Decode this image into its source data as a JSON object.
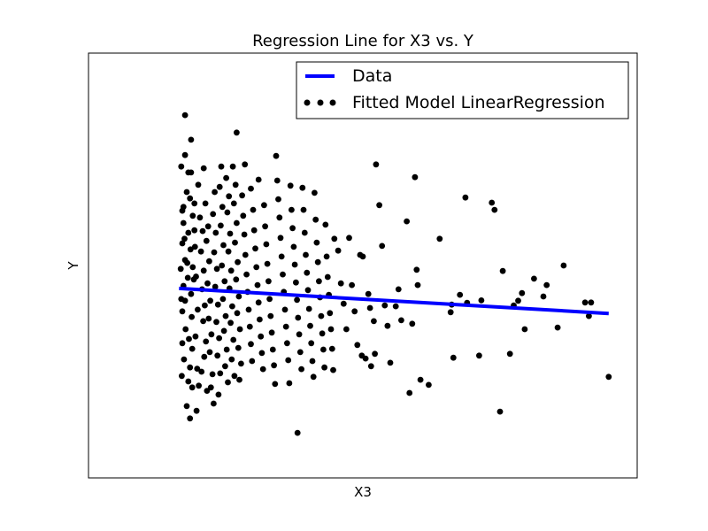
{
  "chart_data": {
    "type": "scatter",
    "title": "Regression Line for X3 vs. Y",
    "xlabel": "X3",
    "ylabel": "Y",
    "xlim": [
      0,
      1
    ],
    "ylim": [
      0,
      1
    ],
    "grid": false,
    "ticks_visible": false,
    "legend": {
      "placement": "top-right",
      "entries": [
        {
          "label": "Data",
          "marker": "line",
          "color": "#0000ff"
        },
        {
          "label": "Fitted Model LinearRegression",
          "marker": "dots",
          "color": "#000000"
        }
      ]
    },
    "line_series": {
      "name": "Data",
      "color": "#0000ff",
      "x": [
        0.165,
        0.948
      ],
      "y": [
        0.446,
        0.387
      ]
    },
    "scatter_series": {
      "name": "Fitted Model LinearRegression",
      "color": "#000000",
      "points": [
        [
          0.176,
          0.854
        ],
        [
          0.187,
          0.796
        ],
        [
          0.176,
          0.76
        ],
        [
          0.182,
          0.719
        ],
        [
          0.187,
          0.719
        ],
        [
          0.169,
          0.733
        ],
        [
          0.185,
          0.658
        ],
        [
          0.179,
          0.673
        ],
        [
          0.173,
          0.638
        ],
        [
          0.19,
          0.617
        ],
        [
          0.173,
          0.6
        ],
        [
          0.182,
          0.577
        ],
        [
          0.171,
          0.552
        ],
        [
          0.186,
          0.538
        ],
        [
          0.176,
          0.513
        ],
        [
          0.19,
          0.496
        ],
        [
          0.168,
          0.492
        ],
        [
          0.181,
          0.471
        ],
        [
          0.173,
          0.452
        ],
        [
          0.187,
          0.433
        ],
        [
          0.176,
          0.417
        ],
        [
          0.171,
          0.392
        ],
        [
          0.188,
          0.379
        ],
        [
          0.177,
          0.35
        ],
        [
          0.183,
          0.327
        ],
        [
          0.171,
          0.317
        ],
        [
          0.189,
          0.304
        ],
        [
          0.174,
          0.279
        ],
        [
          0.185,
          0.26
        ],
        [
          0.17,
          0.24
        ],
        [
          0.182,
          0.227
        ],
        [
          0.189,
          0.213
        ],
        [
          0.179,
          0.169
        ],
        [
          0.185,
          0.14
        ],
        [
          0.169,
          0.421
        ],
        [
          0.192,
          0.467
        ],
        [
          0.18,
          0.506
        ],
        [
          0.175,
          0.563
        ],
        [
          0.193,
          0.583
        ],
        [
          0.171,
          0.629
        ],
        [
          0.194,
          0.544
        ],
        [
          0.196,
          0.474
        ],
        [
          0.199,
          0.396
        ],
        [
          0.195,
          0.333
        ],
        [
          0.198,
          0.257
        ],
        [
          0.201,
          0.217
        ],
        [
          0.197,
          0.158
        ],
        [
          0.193,
          0.646
        ],
        [
          0.2,
          0.69
        ],
        [
          0.203,
          0.613
        ],
        [
          0.208,
          0.581
        ],
        [
          0.205,
          0.533
        ],
        [
          0.21,
          0.488
        ],
        [
          0.207,
          0.444
        ],
        [
          0.212,
          0.406
        ],
        [
          0.209,
          0.369
        ],
        [
          0.214,
          0.321
        ],
        [
          0.211,
          0.285
        ],
        [
          0.206,
          0.25
        ],
        [
          0.216,
          0.205
        ],
        [
          0.213,
          0.646
        ],
        [
          0.218,
          0.592
        ],
        [
          0.215,
          0.558
        ],
        [
          0.22,
          0.51
        ],
        [
          0.217,
          0.458
        ],
        [
          0.222,
          0.417
        ],
        [
          0.219,
          0.375
        ],
        [
          0.224,
          0.338
        ],
        [
          0.221,
          0.296
        ],
        [
          0.226,
          0.244
        ],
        [
          0.223,
          0.213
        ],
        [
          0.228,
          0.175
        ],
        [
          0.21,
          0.729
        ],
        [
          0.23,
          0.673
        ],
        [
          0.227,
          0.621
        ],
        [
          0.232,
          0.577
        ],
        [
          0.229,
          0.531
        ],
        [
          0.234,
          0.492
        ],
        [
          0.231,
          0.45
        ],
        [
          0.236,
          0.408
        ],
        [
          0.233,
          0.367
        ],
        [
          0.238,
          0.329
        ],
        [
          0.235,
          0.288
        ],
        [
          0.24,
          0.246
        ],
        [
          0.237,
          0.196
        ],
        [
          0.242,
          0.733
        ],
        [
          0.239,
          0.685
        ],
        [
          0.244,
          0.638
        ],
        [
          0.241,
          0.594
        ],
        [
          0.246,
          0.548
        ],
        [
          0.243,
          0.5
        ],
        [
          0.248,
          0.463
        ],
        [
          0.245,
          0.421
        ],
        [
          0.25,
          0.381
        ],
        [
          0.247,
          0.346
        ],
        [
          0.252,
          0.302
        ],
        [
          0.249,
          0.263
        ],
        [
          0.254,
          0.225
        ],
        [
          0.251,
          0.706
        ],
        [
          0.256,
          0.663
        ],
        [
          0.253,
          0.625
        ],
        [
          0.258,
          0.575
        ],
        [
          0.255,
          0.533
        ],
        [
          0.26,
          0.488
        ],
        [
          0.257,
          0.446
        ],
        [
          0.262,
          0.404
        ],
        [
          0.259,
          0.365
        ],
        [
          0.264,
          0.325
        ],
        [
          0.261,
          0.279
        ],
        [
          0.266,
          0.24
        ],
        [
          0.263,
          0.733
        ],
        [
          0.268,
          0.69
        ],
        [
          0.265,
          0.646
        ],
        [
          0.27,
          0.6
        ],
        [
          0.267,
          0.554
        ],
        [
          0.272,
          0.508
        ],
        [
          0.269,
          0.467
        ],
        [
          0.274,
          0.427
        ],
        [
          0.271,
          0.388
        ],
        [
          0.276,
          0.35
        ],
        [
          0.273,
          0.306
        ],
        [
          0.278,
          0.269
        ],
        [
          0.275,
          0.231
        ],
        [
          0.27,
          0.813
        ],
        [
          0.28,
          0.665
        ],
        [
          0.282,
          0.617
        ],
        [
          0.284,
          0.573
        ],
        [
          0.286,
          0.525
        ],
        [
          0.288,
          0.479
        ],
        [
          0.29,
          0.438
        ],
        [
          0.292,
          0.396
        ],
        [
          0.294,
          0.356
        ],
        [
          0.296,
          0.315
        ],
        [
          0.298,
          0.275
        ],
        [
          0.285,
          0.738
        ],
        [
          0.296,
          0.681
        ],
        [
          0.3,
          0.631
        ],
        [
          0.302,
          0.583
        ],
        [
          0.304,
          0.54
        ],
        [
          0.306,
          0.496
        ],
        [
          0.308,
          0.454
        ],
        [
          0.31,
          0.413
        ],
        [
          0.312,
          0.373
        ],
        [
          0.314,
          0.333
        ],
        [
          0.316,
          0.294
        ],
        [
          0.318,
          0.256
        ],
        [
          0.31,
          0.702
        ],
        [
          0.32,
          0.642
        ],
        [
          0.322,
          0.592
        ],
        [
          0.324,
          0.55
        ],
        [
          0.326,
          0.504
        ],
        [
          0.328,
          0.463
        ],
        [
          0.33,
          0.421
        ],
        [
          0.332,
          0.381
        ],
        [
          0.334,
          0.342
        ],
        [
          0.336,
          0.302
        ],
        [
          0.338,
          0.265
        ],
        [
          0.34,
          0.221
        ],
        [
          0.342,
          0.758
        ],
        [
          0.344,
          0.7
        ],
        [
          0.346,
          0.656
        ],
        [
          0.348,
          0.613
        ],
        [
          0.35,
          0.565
        ],
        [
          0.352,
          0.521
        ],
        [
          0.354,
          0.479
        ],
        [
          0.356,
          0.438
        ],
        [
          0.358,
          0.396
        ],
        [
          0.36,
          0.356
        ],
        [
          0.362,
          0.317
        ],
        [
          0.364,
          0.277
        ],
        [
          0.366,
          0.223
        ],
        [
          0.368,
          0.688
        ],
        [
          0.37,
          0.631
        ],
        [
          0.372,
          0.588
        ],
        [
          0.374,
          0.544
        ],
        [
          0.376,
          0.502
        ],
        [
          0.378,
          0.46
        ],
        [
          0.38,
          0.419
        ],
        [
          0.382,
          0.377
        ],
        [
          0.384,
          0.338
        ],
        [
          0.386,
          0.296
        ],
        [
          0.388,
          0.256
        ],
        [
          0.381,
          0.106
        ],
        [
          0.39,
          0.683
        ],
        [
          0.392,
          0.631
        ],
        [
          0.394,
          0.577
        ],
        [
          0.396,
          0.525
        ],
        [
          0.398,
          0.483
        ],
        [
          0.4,
          0.442
        ],
        [
          0.402,
          0.398
        ],
        [
          0.404,
          0.358
        ],
        [
          0.406,
          0.317
        ],
        [
          0.408,
          0.275
        ],
        [
          0.41,
          0.238
        ],
        [
          0.412,
          0.671
        ],
        [
          0.414,
          0.608
        ],
        [
          0.416,
          0.554
        ],
        [
          0.418,
          0.508
        ],
        [
          0.42,
          0.463
        ],
        [
          0.422,
          0.425
        ],
        [
          0.424,
          0.381
        ],
        [
          0.426,
          0.34
        ],
        [
          0.428,
          0.302
        ],
        [
          0.43,
          0.26
        ],
        [
          0.432,
          0.596
        ],
        [
          0.434,
          0.521
        ],
        [
          0.436,
          0.473
        ],
        [
          0.438,
          0.431
        ],
        [
          0.44,
          0.388
        ],
        [
          0.442,
          0.35
        ],
        [
          0.444,
          0.304
        ],
        [
          0.446,
          0.254
        ],
        [
          0.448,
          0.563
        ],
        [
          0.455,
          0.535
        ],
        [
          0.46,
          0.458
        ],
        [
          0.465,
          0.41
        ],
        [
          0.47,
          0.35
        ],
        [
          0.475,
          0.565
        ],
        [
          0.48,
          0.454
        ],
        [
          0.485,
          0.392
        ],
        [
          0.49,
          0.313
        ],
        [
          0.495,
          0.525
        ],
        [
          0.498,
          0.288
        ],
        [
          0.5,
          0.521
        ],
        [
          0.505,
          0.281
        ],
        [
          0.51,
          0.433
        ],
        [
          0.513,
          0.4
        ],
        [
          0.515,
          0.263
        ],
        [
          0.52,
          0.369
        ],
        [
          0.522,
          0.292
        ],
        [
          0.524,
          0.738
        ],
        [
          0.53,
          0.642
        ],
        [
          0.535,
          0.546
        ],
        [
          0.54,
          0.406
        ],
        [
          0.545,
          0.358
        ],
        [
          0.55,
          0.271
        ],
        [
          0.56,
          0.404
        ],
        [
          0.565,
          0.444
        ],
        [
          0.57,
          0.371
        ],
        [
          0.58,
          0.604
        ],
        [
          0.585,
          0.2
        ],
        [
          0.59,
          0.363
        ],
        [
          0.595,
          0.708
        ],
        [
          0.598,
          0.49
        ],
        [
          0.6,
          0.454
        ],
        [
          0.605,
          0.231
        ],
        [
          0.62,
          0.219
        ],
        [
          0.64,
          0.563
        ],
        [
          0.66,
          0.39
        ],
        [
          0.662,
          0.408
        ],
        [
          0.665,
          0.283
        ],
        [
          0.677,
          0.431
        ],
        [
          0.687,
          0.66
        ],
        [
          0.69,
          0.412
        ],
        [
          0.712,
          0.288
        ],
        [
          0.716,
          0.418
        ],
        [
          0.735,
          0.648
        ],
        [
          0.74,
          0.631
        ],
        [
          0.75,
          0.156
        ],
        [
          0.755,
          0.487
        ],
        [
          0.768,
          0.292
        ],
        [
          0.775,
          0.406
        ],
        [
          0.783,
          0.417
        ],
        [
          0.79,
          0.435
        ],
        [
          0.795,
          0.35
        ],
        [
          0.812,
          0.469
        ],
        [
          0.829,
          0.427
        ],
        [
          0.835,
          0.454
        ],
        [
          0.855,
          0.354
        ],
        [
          0.866,
          0.5
        ],
        [
          0.905,
          0.413
        ],
        [
          0.912,
          0.381
        ],
        [
          0.916,
          0.413
        ],
        [
          0.948,
          0.238
        ]
      ]
    }
  }
}
